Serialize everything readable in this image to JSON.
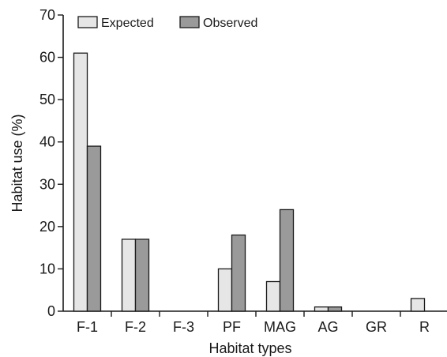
{
  "chart_data": {
    "type": "bar",
    "categories": [
      "F-1",
      "F-2",
      "F-3",
      "PF",
      "MAG",
      "AG",
      "GR",
      "R"
    ],
    "series": [
      {
        "name": "Expected",
        "values": [
          61,
          17,
          0,
          10,
          7,
          1,
          0,
          3
        ]
      },
      {
        "name": "Observed",
        "values": [
          39,
          17,
          0,
          18,
          24,
          1,
          0,
          0
        ]
      }
    ],
    "title": "",
    "xlabel": "Habitat types",
    "ylabel": "Habitat use (%)",
    "ylim": [
      0,
      70
    ],
    "yticks": [
      0,
      10,
      20,
      30,
      40,
      50,
      60,
      70
    ],
    "grid": false,
    "legend_position": "top-left",
    "colors": {
      "Expected": "#e6e6e6",
      "Observed": "#9a9a9a",
      "axis": "#1a1a1a"
    }
  }
}
